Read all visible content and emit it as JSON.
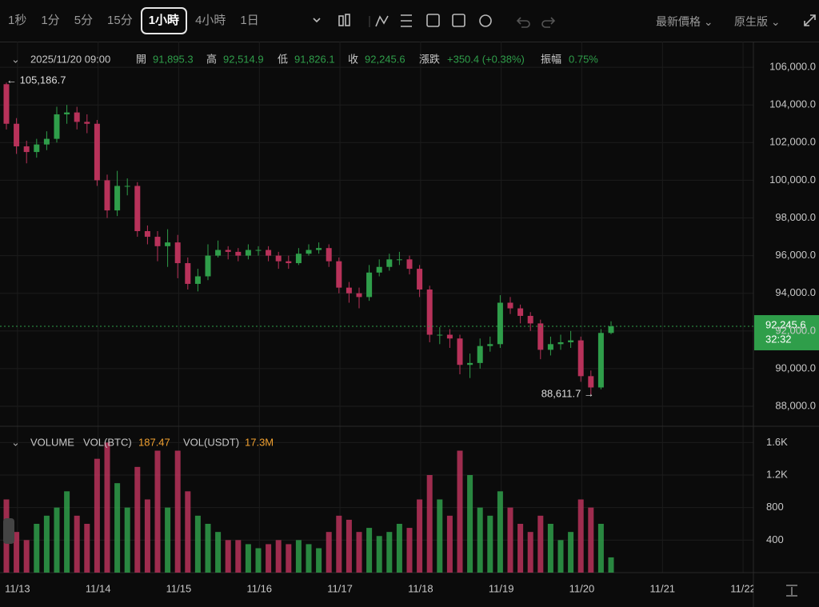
{
  "toolbar": {
    "intervals": [
      "1秒",
      "1分",
      "5分",
      "15分",
      "1小時",
      "4小時",
      "1日"
    ],
    "active": 4,
    "price_type": "最新價格",
    "view": "原生版"
  },
  "chart_data": {
    "type": "candlestick",
    "header": {
      "time": "2025/11/20 09:00",
      "open_label": "開",
      "open": "91,895.3",
      "high_label": "高",
      "high": "92,514.9",
      "low_label": "低",
      "low": "91,826.1",
      "close_label": "收",
      "close": "92,245.6",
      "change_label": "漲跌",
      "change": "+350.4 (+0.38%)",
      "amplitude_label": "振幅",
      "amplitude": "0.75%"
    },
    "annotations": {
      "max": "← 105,186.7",
      "min": "88,611.7 →",
      "last_price": "92,245.6",
      "countdown": "32:32"
    },
    "colors": {
      "up": "#2f9e4a",
      "down": "#b8325a"
    },
    "open": [
      105100,
      103000,
      101800,
      101500,
      101900,
      102200,
      103500,
      103600,
      103100,
      103000,
      100000,
      98400,
      99700,
      99700,
      97300,
      97000,
      96500,
      96700,
      95600,
      94500,
      94900,
      96000,
      96300,
      96200,
      96000,
      96300,
      96300,
      96000,
      95700,
      95600,
      96100,
      96300,
      96400,
      95700,
      94300,
      94000,
      93800,
      95100,
      95400,
      95800,
      95800,
      95300,
      94200,
      91800,
      91800,
      91600,
      90200,
      90300,
      91200,
      91300,
      93500,
      93200,
      92800,
      92400,
      91000,
      91300,
      91400,
      91500,
      89600,
      89000,
      91895.3
    ],
    "high": [
      105186.7,
      103300,
      102100,
      102200,
      102600,
      103900,
      104000,
      103900,
      103500,
      103200,
      100300,
      100500,
      100100,
      99900,
      97600,
      97300,
      97400,
      97100,
      95900,
      95300,
      96600,
      96800,
      96500,
      96400,
      96600,
      96500,
      96500,
      96200,
      96000,
      96400,
      96600,
      96700,
      96600,
      95900,
      94600,
      94300,
      95500,
      95800,
      96100,
      96200,
      96000,
      95500,
      94400,
      92200,
      92100,
      91800,
      90800,
      91600,
      91700,
      93900,
      93800,
      93400,
      93000,
      92600,
      91700,
      91800,
      92000,
      91700,
      89900,
      92100,
      92514.9
    ],
    "low": [
      102700,
      101400,
      100900,
      101200,
      101600,
      102000,
      103000,
      102700,
      102500,
      99700,
      98000,
      98100,
      99200,
      97000,
      96600,
      95700,
      95400,
      94800,
      94200,
      94100,
      94700,
      95900,
      95800,
      95700,
      95800,
      96000,
      95700,
      95300,
      95300,
      95500,
      96000,
      96100,
      95400,
      94000,
      93500,
      93200,
      93600,
      94900,
      95200,
      95500,
      95000,
      93800,
      91400,
      91300,
      91100,
      89700,
      89500,
      90000,
      90900,
      91100,
      92900,
      92400,
      92000,
      90500,
      90700,
      91000,
      91100,
      89300,
      88611.7,
      88900,
      91826.1
    ],
    "close": [
      103000,
      101800,
      101500,
      101900,
      102200,
      103500,
      103600,
      103100,
      103000,
      100000,
      98400,
      99700,
      99700,
      97300,
      97000,
      96500,
      96700,
      95600,
      94500,
      94900,
      96000,
      96300,
      96200,
      96000,
      96300,
      96300,
      96000,
      95700,
      95600,
      96100,
      96300,
      96400,
      95700,
      94300,
      94000,
      93800,
      95100,
      95400,
      95800,
      95800,
      95300,
      94200,
      91800,
      91800,
      91600,
      90200,
      90300,
      91200,
      91300,
      93500,
      93200,
      92800,
      92400,
      91000,
      91300,
      91400,
      91500,
      89600,
      89000,
      91895.3,
      92245.6
    ],
    "ylim": [
      86940,
      107320
    ],
    "yticks": [
      {
        "value": 88000,
        "label": "88,000.0"
      },
      {
        "value": 90000,
        "label": "90,000.0"
      },
      {
        "value": 92000,
        "label": "92,000.0"
      },
      {
        "value": 94000,
        "label": "94,000.0"
      },
      {
        "value": 96000,
        "label": "96,000.0"
      },
      {
        "value": 98000,
        "label": "98,000.0"
      },
      {
        "value": 100000,
        "label": "100,000.0"
      },
      {
        "value": 102000,
        "label": "102,000.0"
      },
      {
        "value": 104000,
        "label": "104,000.0"
      },
      {
        "value": 106000,
        "label": "106,000.0"
      }
    ],
    "xticks": [
      {
        "value": 1.1,
        "label": "11/13"
      },
      {
        "value": 9.1,
        "label": "11/14"
      },
      {
        "value": 17.1,
        "label": "11/15"
      },
      {
        "value": 25.1,
        "label": "11/16"
      },
      {
        "value": 33.1,
        "label": "11/17"
      },
      {
        "value": 41.1,
        "label": "11/18"
      },
      {
        "value": 49.1,
        "label": "11/19"
      },
      {
        "value": 57.1,
        "label": "11/20"
      },
      {
        "value": 65.1,
        "label": "11/21"
      },
      {
        "value": 73.1,
        "label": "11/22"
      }
    ],
    "volume": {
      "title": "VOLUME",
      "btc_label": "VOL(BTC)",
      "usdt_label": "VOL(USDT)",
      "usdt": "17.3M",
      "values": [
        900,
        500,
        400,
        600,
        700,
        800,
        1000,
        700,
        600,
        1400,
        1600,
        1100,
        800,
        1300,
        900,
        1500,
        800,
        1500,
        1000,
        700,
        600,
        500,
        400,
        400,
        350,
        300,
        350,
        400,
        350,
        400,
        350,
        300,
        500,
        700,
        650,
        500,
        550,
        450,
        500,
        600,
        550,
        900,
        1200,
        900,
        700,
        1500,
        1200,
        800,
        700,
        1000,
        800,
        600,
        500,
        700,
        600,
        400,
        500,
        900,
        800,
        600,
        187.47
      ],
      "ylim": [
        0,
        1800
      ],
      "yticks": [
        400,
        800,
        {
          "value": 1200,
          "label": "1.2K"
        },
        {
          "value": 1600,
          "label": "1.6K"
        }
      ]
    }
  }
}
